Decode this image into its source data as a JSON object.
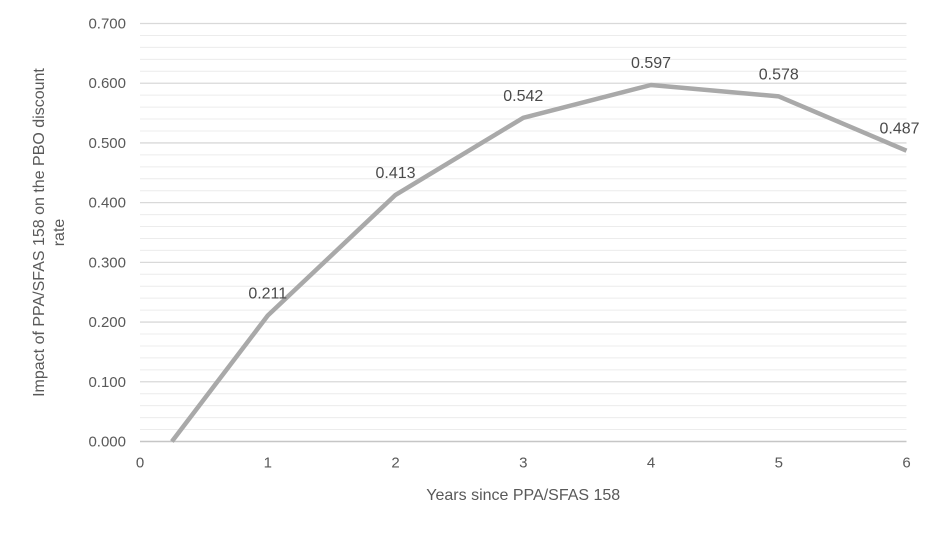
{
  "chart_data": {
    "type": "line",
    "title": "",
    "xlabel": "Years since PPA/SFAS 158",
    "ylabel": "Impact of PPA/SFAS 158 on the PBO discount rate",
    "ylabel_lines": [
      "Impact of PPA/SFAS 158 on the PBO discount",
      "rate"
    ],
    "x": [
      0.25,
      1,
      2,
      3,
      4,
      5,
      6
    ],
    "series": [
      {
        "name": "Impact of PPA/SFAS 158 on the PBO discount rate",
        "points": [
          {
            "x": 0.25,
            "y": 0.0,
            "label": ""
          },
          {
            "x": 1,
            "y": 0.211,
            "label": "0.211"
          },
          {
            "x": 2,
            "y": 0.413,
            "label": "0.413"
          },
          {
            "x": 3,
            "y": 0.542,
            "label": "0.542"
          },
          {
            "x": 4,
            "y": 0.597,
            "label": "0.597"
          },
          {
            "x": 5,
            "y": 0.578,
            "label": "0.578"
          },
          {
            "x": 6,
            "y": 0.487,
            "label": "0.487",
            "label_dx": -7
          }
        ]
      }
    ],
    "x_ticks": [
      "0",
      "1",
      "2",
      "3",
      "4",
      "5",
      "6"
    ],
    "y_ticks": [
      "0.000",
      "0.100",
      "0.200",
      "0.300",
      "0.400",
      "0.500",
      "0.600",
      "0.700"
    ],
    "xlim": [
      0,
      6
    ],
    "ylim": [
      0,
      0.7
    ],
    "y_major_step": 0.1,
    "y_minor_step": 0.02,
    "grid": "horizontal major+minor",
    "legend_position": "none",
    "colors": {
      "series_line": "#A9A9A9",
      "major_gridline": "#D9D9D9",
      "minor_gridline": "#ECECEC",
      "axis_line": "#C6C6C6",
      "tick_text": "#595959",
      "title_text": "#595959",
      "data_label_text": "#4A4A4A",
      "background": "#FFFFFF"
    },
    "style": {
      "series_stroke_width": 4.5,
      "tick_font_size": 15,
      "data_label_font_size": 16,
      "axis_title_font_size": 16
    }
  }
}
